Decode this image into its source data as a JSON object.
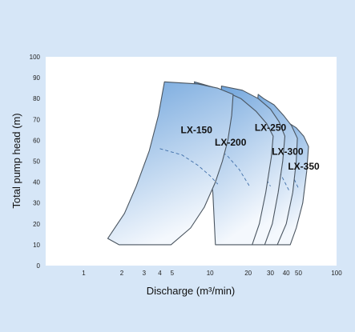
{
  "chart_data": {
    "type": "area",
    "title": "",
    "xlabel": "Discharge (m³/min)",
    "ylabel": "Total pump head (m)",
    "x_scale": "log",
    "xlim": [
      0.5,
      100
    ],
    "ylim": [
      0,
      100
    ],
    "x_ticks": [
      1,
      2,
      3,
      4,
      5,
      10,
      20,
      30,
      40,
      50,
      100
    ],
    "y_ticks": [
      0,
      10,
      20,
      30,
      40,
      50,
      60,
      70,
      80,
      90,
      100
    ],
    "grid": false,
    "colors": {
      "area_dark": "#6fa4dc",
      "area_light": "#f4f8fd",
      "outline": "#4a5560",
      "background": "#d6e6f7",
      "plot": "#ffffff"
    },
    "series": [
      {
        "name": "LX-350",
        "label_at": [
          55.0,
          46.0
        ],
        "boundary": [
          [
            23.0,
            10.0
          ],
          [
            43.0,
            10.0
          ],
          [
            48.0,
            18.0
          ],
          [
            54.0,
            30.0
          ],
          [
            58.0,
            45.0
          ],
          [
            60.0,
            57.0
          ],
          [
            55.0,
            62.0
          ],
          [
            48.0,
            66.0
          ],
          [
            40.0,
            69.0
          ],
          [
            33.0,
            70.0
          ],
          [
            29.0,
            70.0
          ],
          [
            26.0,
            48.0
          ],
          [
            24.5,
            28.0
          ]
        ],
        "dashed": [
          [
            29.0,
            55.0
          ],
          [
            36.0,
            51.0
          ],
          [
            44.0,
            44.0
          ],
          [
            50.0,
            37.0
          ]
        ]
      },
      {
        "name": "LX-300",
        "label_at": [
          41.0,
          53.0
        ],
        "boundary": [
          [
            19.0,
            10.0
          ],
          [
            34.0,
            10.0
          ],
          [
            40.0,
            20.0
          ],
          [
            45.0,
            35.0
          ],
          [
            48.0,
            50.0
          ],
          [
            49.0,
            61.0
          ],
          [
            44.0,
            67.0
          ],
          [
            38.0,
            72.0
          ],
          [
            32.0,
            77.0
          ],
          [
            26.5,
            80.0
          ],
          [
            24.0,
            82.0
          ],
          [
            22.0,
            58.0
          ],
          [
            20.5,
            35.0
          ]
        ],
        "dashed": [
          [
            24.0,
            57.0
          ],
          [
            30.0,
            51.0
          ],
          [
            36.0,
            44.0
          ],
          [
            42.0,
            36.0
          ]
        ]
      },
      {
        "name": "LX-250",
        "label_at": [
          30.0,
          64.5
        ],
        "boundary": [
          [
            14.0,
            10.0
          ],
          [
            27.0,
            10.0
          ],
          [
            31.0,
            20.0
          ],
          [
            34.5,
            35.0
          ],
          [
            37.5,
            50.0
          ],
          [
            39.0,
            62.0
          ],
          [
            35.0,
            69.0
          ],
          [
            30.0,
            75.0
          ],
          [
            24.0,
            80.0
          ],
          [
            18.0,
            84.0
          ],
          [
            12.3,
            86.0
          ],
          [
            12.0,
            70.0
          ],
          [
            13.0,
            35.0
          ]
        ],
        "dashed": [
          [
            15.0,
            58.0
          ],
          [
            20.0,
            53.0
          ],
          [
            25.0,
            46.0
          ],
          [
            30.0,
            38.0
          ]
        ]
      },
      {
        "name": "LX-200",
        "label_at": [
          14.5,
          57.5
        ],
        "boundary": [
          [
            11.0,
            10.0
          ],
          [
            21.5,
            10.0
          ],
          [
            24.5,
            20.0
          ],
          [
            27.5,
            35.0
          ],
          [
            30.5,
            52.0
          ],
          [
            31.5,
            62.0
          ],
          [
            28.0,
            68.0
          ],
          [
            23.0,
            74.0
          ],
          [
            17.5,
            80.0
          ],
          [
            12.0,
            84.5
          ],
          [
            7.5,
            88.0
          ],
          [
            9.0,
            65.0
          ],
          [
            10.5,
            35.0
          ]
        ],
        "dashed": [
          [
            9.5,
            57.0
          ],
          [
            13.5,
            53.0
          ],
          [
            17.0,
            46.0
          ],
          [
            20.5,
            38.0
          ]
        ]
      },
      {
        "name": "LX-150",
        "label_at": [
          7.8,
          63.5
        ],
        "boundary": [
          [
            1.55,
            13.0
          ],
          [
            1.9,
            10.0
          ],
          [
            4.9,
            10.0
          ],
          [
            7.0,
            18.0
          ],
          [
            9.0,
            28.0
          ],
          [
            11.0,
            40.0
          ],
          [
            12.5,
            50.0
          ],
          [
            13.8,
            60.0
          ],
          [
            14.8,
            72.0
          ],
          [
            15.2,
            82.0
          ],
          [
            11.5,
            85.0
          ],
          [
            8.0,
            87.0
          ],
          [
            4.35,
            88.0
          ],
          [
            3.9,
            72.0
          ],
          [
            3.3,
            55.0
          ],
          [
            2.6,
            38.0
          ],
          [
            2.1,
            25.0
          ]
        ],
        "dashed": [
          [
            4.0,
            56.0
          ],
          [
            6.0,
            53.0
          ],
          [
            8.0,
            48.0
          ],
          [
            10.0,
            43.0
          ],
          [
            11.5,
            39.0
          ]
        ]
      }
    ]
  }
}
